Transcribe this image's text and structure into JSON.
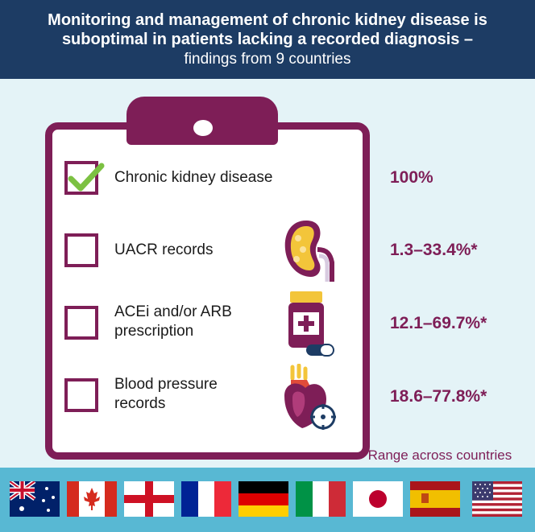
{
  "header": {
    "line1": "Monitoring and management of chronic kidney disease is",
    "line2": "suboptimal in patients lacking a recorded diagnosis –",
    "line3": "findings from 9 countries"
  },
  "items": [
    {
      "label_lines": [
        "Chronic kidney disease"
      ],
      "value": "100%",
      "checked": true
    },
    {
      "label_lines": [
        "UACR records"
      ],
      "value": "1.3–33.4%*",
      "checked": false,
      "icon": "kidney-icon"
    },
    {
      "label_lines": [
        "ACEi and/or ARB",
        "prescription"
      ],
      "value": "12.1–69.7%*",
      "checked": false,
      "icon": "medication-bottle-icon"
    },
    {
      "label_lines": [
        "Blood pressure",
        "records"
      ],
      "value": "18.6–77.8%*",
      "checked": false,
      "icon": "heart-icon"
    }
  ],
  "footnote": "*Range across countries",
  "flags": [
    "australia-flag-icon",
    "canada-flag-icon",
    "england-flag-icon",
    "france-flag-icon",
    "germany-flag-icon",
    "italy-flag-icon",
    "japan-flag-icon",
    "spain-flag-icon",
    "usa-flag-icon"
  ],
  "colors": {
    "navy": "#1d3c64",
    "plum": "#7e1e57",
    "check_green": "#7cc142",
    "band_blue": "#58b8d3",
    "background": "#e4f3f7"
  }
}
